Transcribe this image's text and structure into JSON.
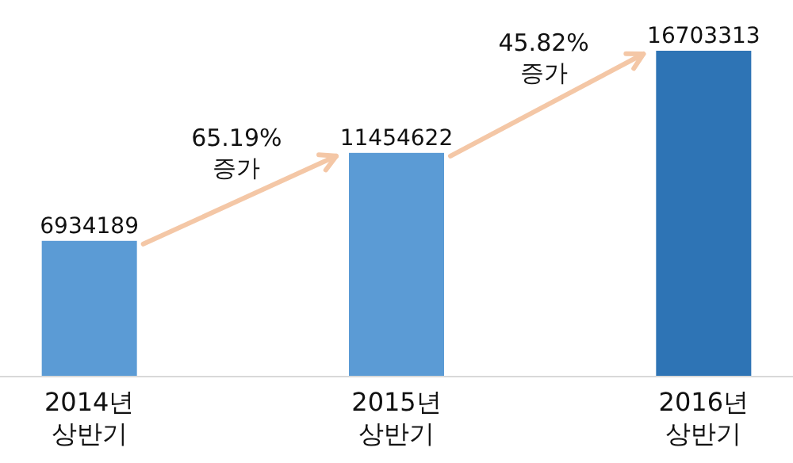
{
  "chart_data": {
    "type": "bar",
    "categories": [
      "2014년\n상반기",
      "2015년\n상반기",
      "2016년\n상반기"
    ],
    "values": [
      6934189,
      11454622,
      16703313
    ],
    "colors": [
      "#5b9bd5",
      "#5b9bd5",
      "#2e74b5"
    ],
    "data_labels": true,
    "annotations": [
      "65.19%\n증가",
      "45.82%\n증가"
    ]
  }
}
